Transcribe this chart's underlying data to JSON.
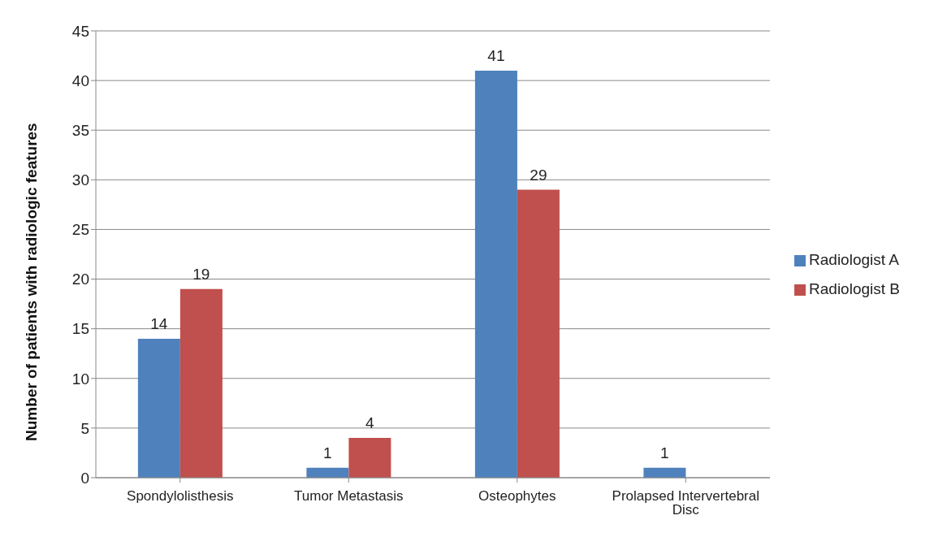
{
  "chart_data": {
    "type": "bar",
    "ylabel": "Number of patients with radiologic  features",
    "categories": [
      "Spondylolisthesis",
      "Tumor Metastasis",
      "Osteophytes",
      "Prolapsed Intervertebral Disc"
    ],
    "series": [
      {
        "name": "Radiologist A",
        "color": "#4f81bd",
        "values": [
          14,
          1,
          41,
          1
        ],
        "value_labels": [
          "14",
          "1",
          "41",
          "1"
        ]
      },
      {
        "name": "Radiologist B",
        "color": "#c0504d",
        "values": [
          19,
          4,
          29,
          0
        ],
        "value_labels": [
          "19",
          "4",
          "29",
          null
        ]
      }
    ],
    "ylim": [
      0,
      45
    ],
    "yticks": [
      0,
      5,
      10,
      15,
      20,
      25,
      30,
      35,
      40,
      45
    ],
    "grid": "y",
    "legend": "right"
  }
}
